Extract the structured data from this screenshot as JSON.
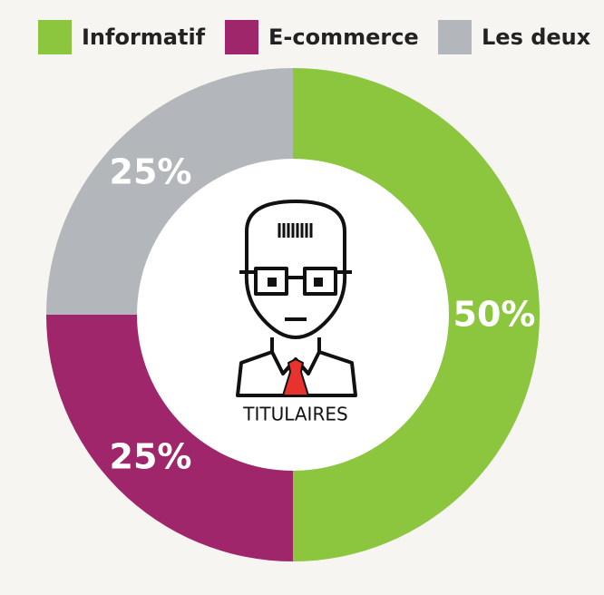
{
  "chart_data": {
    "type": "donut",
    "categories": [
      "Informatif",
      "E-commerce",
      "Les deux"
    ],
    "values": [
      50,
      25,
      25
    ],
    "value_labels": [
      "50%",
      "25%",
      "25%"
    ],
    "colors": [
      "#8cc63f",
      "#a0266b",
      "#b3b6ba"
    ],
    "center_label": "TITULAIRES"
  }
}
